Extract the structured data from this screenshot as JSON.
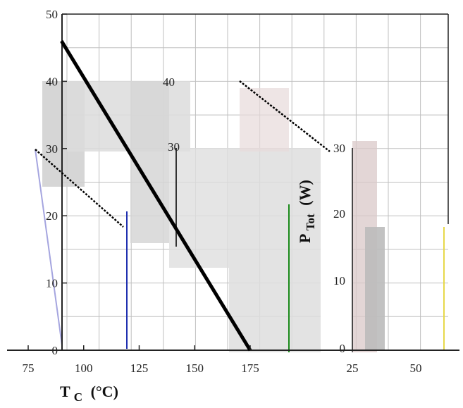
{
  "chart_data": {
    "type": "line",
    "xlabel_main": "T",
    "xlabel_sub": "C",
    "xlabel_unit": "(°C)",
    "ylabel_main": "P",
    "ylabel_sub": "Tot",
    "ylabel_unit": "(W)",
    "xlim": [
      75,
      175
    ],
    "ylim": [
      0,
      50
    ],
    "x_ticks": [
      "75",
      "100",
      "125",
      "150",
      "175"
    ],
    "x_ticks_fragment": [
      "25",
      "50"
    ],
    "y_ticks": [
      "50",
      "40",
      "30",
      "20",
      "10",
      "0"
    ],
    "y_ticks_inner_partial": [
      "40",
      "30"
    ],
    "grid": true,
    "series": [
      {
        "x": [
          90,
          175
        ],
        "y": [
          46,
          0
        ]
      }
    ],
    "colors": {
      "line": "#000000",
      "grid": "#bfbfbf",
      "axis": "#222222"
    }
  }
}
